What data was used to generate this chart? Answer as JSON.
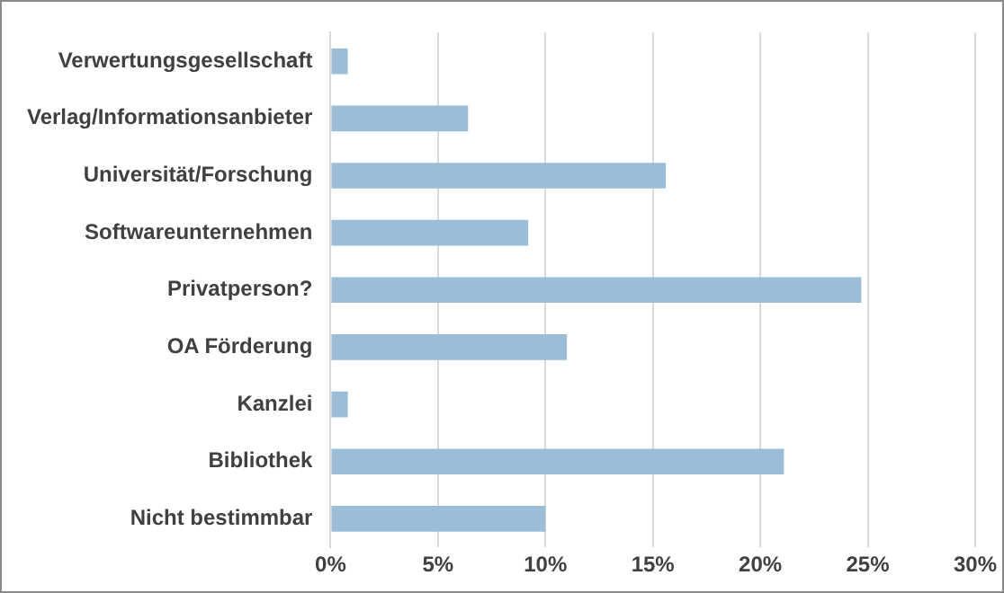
{
  "chart_data": {
    "type": "bar",
    "orientation": "horizontal",
    "categories": [
      "Verwertungsgesellschaft",
      "Verlag/Informationsanbieter",
      "Universität/Forschung",
      "Softwareunternehmen",
      "Privatperson?",
      "OA Förderung",
      "Kanzlei",
      "Bibliothek",
      "Nicht bestimmbar"
    ],
    "values": [
      0.8,
      6.4,
      15.6,
      9.2,
      24.7,
      11.0,
      0.8,
      21.1,
      10.0
    ],
    "color": "#9bbdd8",
    "xlim": [
      0,
      30
    ],
    "xticks": [
      {
        "value": 0,
        "label": "0%"
      },
      {
        "value": 5,
        "label": "5%"
      },
      {
        "value": 10,
        "label": "10%"
      },
      {
        "value": 15,
        "label": "15%"
      },
      {
        "value": 20,
        "label": "20%"
      },
      {
        "value": 25,
        "label": "25%"
      },
      {
        "value": 30,
        "label": "30%"
      }
    ],
    "grid": "x",
    "legend": false
  }
}
